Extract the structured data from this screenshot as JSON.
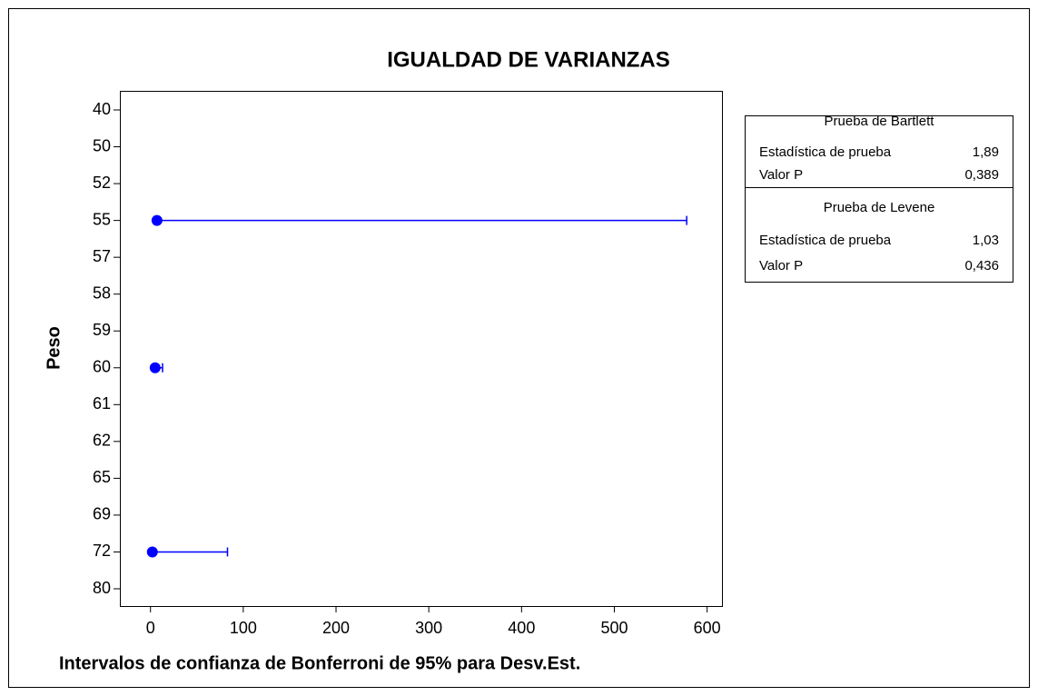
{
  "chart_data": {
    "type": "interval",
    "title": "IGUALDAD DE VARIANZAS",
    "x_label": "Intervalos de confianza de Bonferroni de 95% para Desv.Est.",
    "y_label": "Peso",
    "categories": [
      "40",
      "50",
      "52",
      "55",
      "57",
      "58",
      "59",
      "60",
      "61",
      "62",
      "65",
      "69",
      "72",
      "80"
    ],
    "values": [
      null,
      null,
      null,
      7,
      null,
      null,
      null,
      5,
      null,
      null,
      null,
      null,
      2,
      null
    ],
    "lower": [
      null,
      null,
      null,
      4,
      null,
      null,
      null,
      3,
      null,
      null,
      null,
      null,
      1,
      null
    ],
    "upper": [
      null,
      null,
      null,
      578,
      null,
      null,
      null,
      13,
      null,
      null,
      null,
      null,
      83,
      null
    ],
    "color": "#0000ff",
    "xlim": [
      -33,
      617
    ],
    "xticks": [
      0,
      100,
      200,
      300,
      400,
      500,
      600
    ],
    "tests": [
      {
        "title": "Prueba de Bartlett",
        "rows": [
          {
            "label": "Estadística de prueba",
            "value": "1,89"
          },
          {
            "label": "Valor P",
            "value": "0,389"
          }
        ]
      },
      {
        "title": "Prueba de Levene",
        "rows": [
          {
            "label": "Estadística de prueba",
            "value": "1,03"
          },
          {
            "label": "Valor P",
            "value": "0,436"
          }
        ]
      }
    ]
  }
}
